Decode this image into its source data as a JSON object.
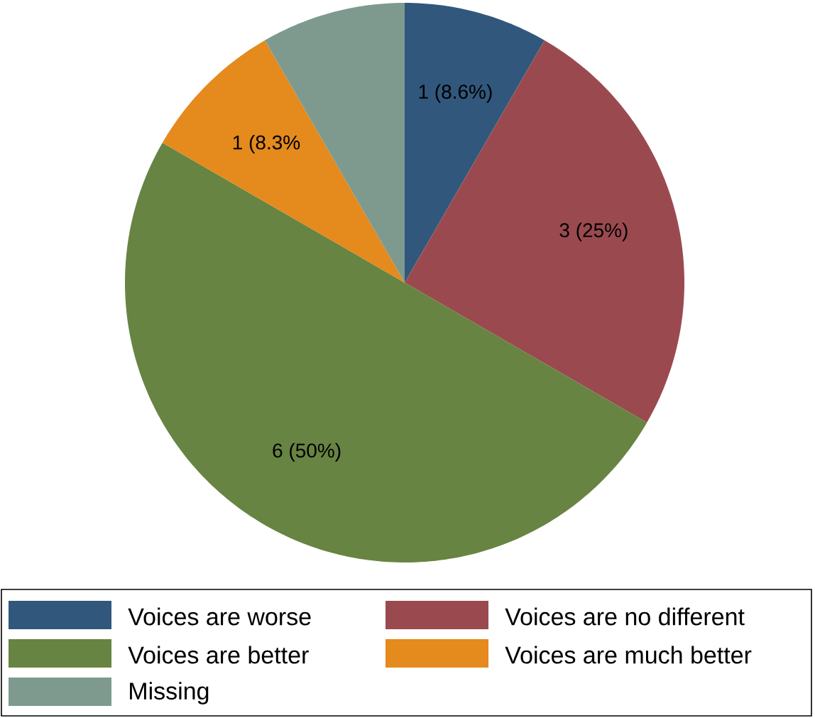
{
  "chart_data": {
    "type": "pie",
    "categories": [
      "Voices are worse",
      "Voices are no different",
      "Voices are better",
      "Voices are much better",
      "Missing"
    ],
    "values": [
      1,
      3,
      6,
      1,
      1
    ],
    "colors": [
      "#31587c",
      "#9a4a4f",
      "#678442",
      "#e58a1c",
      "#7e9a8f"
    ],
    "value_labels": [
      "1 (8.6%)",
      "3 (25%)",
      "6 (50%)",
      "1 (8.3%",
      null
    ],
    "legend": "bottom"
  }
}
